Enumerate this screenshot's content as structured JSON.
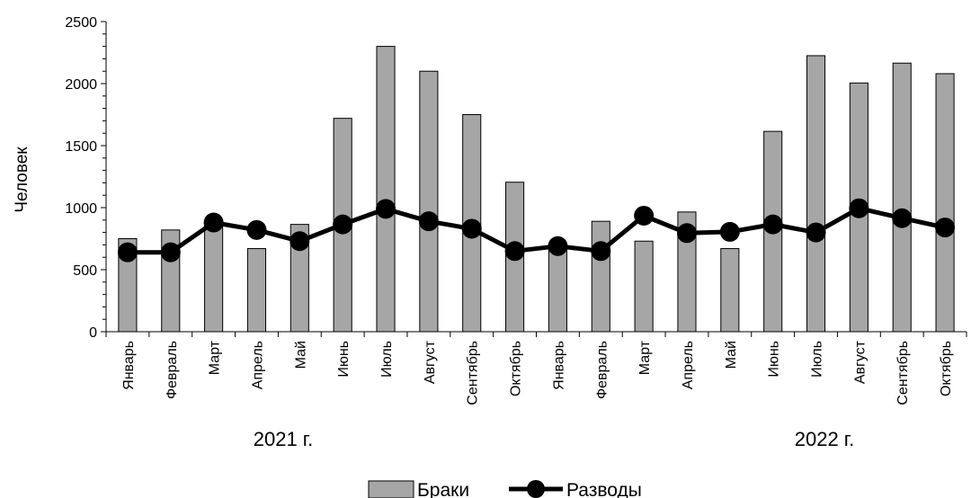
{
  "chart_data": {
    "type": "bar",
    "categories": [
      "Январь",
      "Февраль",
      "Март",
      "Апрель",
      "Май",
      "Июнь",
      "Июль",
      "Август",
      "Сентябрь",
      "Октябрь",
      "Январь",
      "Февраль",
      "Март",
      "Апрель",
      "Май",
      "Июнь",
      "Июль",
      "Август",
      "Сентябрь",
      "Октябрь"
    ],
    "groups": [
      "2021 г.",
      "2022 г."
    ],
    "series": [
      {
        "name": "Браки",
        "type": "bar",
        "color": "#a6a6a6",
        "values": [
          750,
          820,
          880,
          670,
          865,
          1720,
          2300,
          2100,
          1750,
          1205,
          690,
          890,
          730,
          965,
          670,
          1615,
          2225,
          2005,
          2165,
          2080
        ]
      },
      {
        "name": "Разводы",
        "type": "line",
        "color": "#000000",
        "values": [
          640,
          640,
          880,
          820,
          730,
          865,
          990,
          890,
          830,
          650,
          690,
          650,
          935,
          795,
          805,
          865,
          800,
          995,
          915,
          840
        ]
      }
    ],
    "ylabel": "Человек",
    "ylim": [
      0,
      2500
    ],
    "yticks": [
      0,
      500,
      1000,
      1500,
      2000,
      2500
    ],
    "legend": "bottom",
    "grid": false
  }
}
